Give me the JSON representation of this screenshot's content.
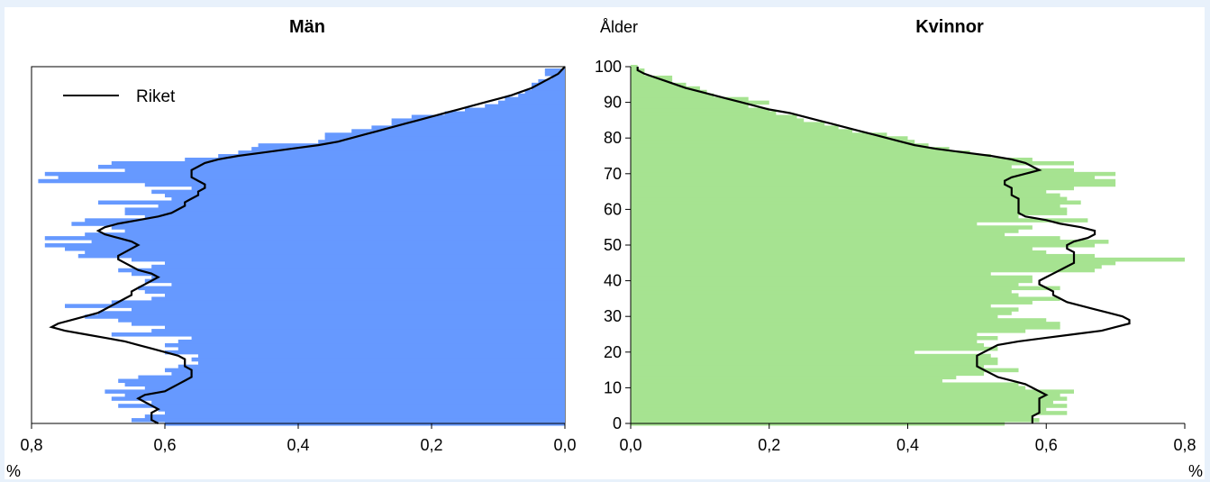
{
  "chart_data": {
    "type": "bar",
    "y_axis": {
      "label": "Ålder",
      "range": [
        0,
        100
      ],
      "ticks": [
        0,
        10,
        20,
        30,
        40,
        50,
        60,
        70,
        80,
        90,
        100
      ]
    },
    "x_unit": "%",
    "panels": [
      {
        "title": "Män",
        "bar_color": "#6699ff",
        "x_range": [
          0.8,
          0.0
        ],
        "x_tick_labels": [
          "0,8",
          "0,6",
          "0,4",
          "0,2",
          "0,0"
        ],
        "x_tick_values": [
          0.8,
          0.6,
          0.4,
          0.2,
          0.0
        ],
        "ages": [
          0,
          1,
          2,
          3,
          4,
          5,
          6,
          7,
          8,
          9,
          10,
          11,
          12,
          13,
          14,
          15,
          16,
          17,
          18,
          19,
          20,
          21,
          22,
          23,
          24,
          25,
          26,
          27,
          28,
          29,
          30,
          31,
          32,
          33,
          34,
          35,
          36,
          37,
          38,
          39,
          40,
          41,
          42,
          43,
          44,
          45,
          46,
          47,
          48,
          49,
          50,
          51,
          52,
          53,
          54,
          55,
          56,
          57,
          58,
          59,
          60,
          61,
          62,
          63,
          64,
          65,
          66,
          67,
          68,
          69,
          70,
          71,
          72,
          73,
          74,
          75,
          76,
          77,
          78,
          79,
          80,
          81,
          82,
          83,
          84,
          85,
          86,
          87,
          88,
          89,
          90,
          91,
          92,
          93,
          94,
          95,
          96,
          97,
          98,
          99,
          100
        ],
        "values": [
          0.6,
          0.65,
          0.63,
          0.6,
          0.61,
          0.67,
          0.62,
          0.68,
          0.66,
          0.69,
          0.63,
          0.66,
          0.67,
          0.64,
          0.59,
          0.6,
          0.58,
          0.55,
          0.56,
          0.55,
          0.6,
          0.58,
          0.6,
          0.58,
          0.56,
          0.68,
          0.62,
          0.6,
          0.65,
          0.67,
          0.72,
          0.7,
          0.65,
          0.75,
          0.68,
          0.62,
          0.6,
          0.63,
          0.64,
          0.59,
          0.63,
          0.62,
          0.65,
          0.67,
          0.62,
          0.6,
          0.65,
          0.73,
          0.72,
          0.75,
          0.78,
          0.71,
          0.78,
          0.72,
          0.66,
          0.68,
          0.74,
          0.72,
          0.63,
          0.66,
          0.66,
          0.61,
          0.7,
          0.59,
          0.6,
          0.62,
          0.56,
          0.63,
          0.79,
          0.76,
          0.78,
          0.66,
          0.7,
          0.68,
          0.57,
          0.52,
          0.49,
          0.47,
          0.46,
          0.37,
          0.36,
          0.36,
          0.32,
          0.29,
          0.26,
          0.26,
          0.23,
          0.18,
          0.15,
          0.12,
          0.1,
          0.09,
          0.07,
          0.06,
          0.05,
          0.05,
          0.04,
          0.02,
          0.03,
          0.03,
          0.0
        ],
        "riket_values": [
          0.61,
          0.62,
          0.62,
          0.62,
          0.61,
          0.62,
          0.63,
          0.64,
          0.63,
          0.6,
          0.59,
          0.58,
          0.57,
          0.56,
          0.56,
          0.56,
          0.57,
          0.57,
          0.57,
          0.58,
          0.6,
          0.62,
          0.64,
          0.66,
          0.69,
          0.72,
          0.75,
          0.77,
          0.76,
          0.74,
          0.72,
          0.7,
          0.69,
          0.68,
          0.67,
          0.66,
          0.65,
          0.65,
          0.64,
          0.63,
          0.62,
          0.61,
          0.62,
          0.64,
          0.65,
          0.66,
          0.67,
          0.67,
          0.66,
          0.65,
          0.64,
          0.65,
          0.67,
          0.69,
          0.7,
          0.69,
          0.67,
          0.64,
          0.61,
          0.59,
          0.58,
          0.57,
          0.57,
          0.56,
          0.55,
          0.55,
          0.54,
          0.54,
          0.55,
          0.56,
          0.56,
          0.56,
          0.55,
          0.54,
          0.52,
          0.49,
          0.45,
          0.41,
          0.37,
          0.34,
          0.32,
          0.3,
          0.28,
          0.26,
          0.24,
          0.22,
          0.2,
          0.18,
          0.16,
          0.14,
          0.12,
          0.1,
          0.08,
          0.065,
          0.05,
          0.04,
          0.03,
          0.02,
          0.01,
          0.005,
          0.0
        ]
      },
      {
        "title": "Kvinnor",
        "bar_color": "#a6e391",
        "x_range": [
          0.0,
          0.8
        ],
        "x_tick_labels": [
          "0,0",
          "0,2",
          "0,4",
          "0,6",
          "0,8"
        ],
        "x_tick_values": [
          0.0,
          0.2,
          0.4,
          0.6,
          0.8
        ],
        "ages": [
          0,
          1,
          2,
          3,
          4,
          5,
          6,
          7,
          8,
          9,
          10,
          11,
          12,
          13,
          14,
          15,
          16,
          17,
          18,
          19,
          20,
          21,
          22,
          23,
          24,
          25,
          26,
          27,
          28,
          29,
          30,
          31,
          32,
          33,
          34,
          35,
          36,
          37,
          38,
          39,
          40,
          41,
          42,
          43,
          44,
          45,
          46,
          47,
          48,
          49,
          50,
          51,
          52,
          53,
          54,
          55,
          56,
          57,
          58,
          59,
          60,
          61,
          62,
          63,
          64,
          65,
          66,
          67,
          68,
          69,
          70,
          71,
          72,
          73,
          74,
          75,
          76,
          77,
          78,
          79,
          80,
          81,
          82,
          83,
          84,
          85,
          86,
          87,
          88,
          89,
          90,
          91,
          92,
          93,
          94,
          95,
          96,
          97,
          98,
          99,
          100
        ],
        "values": [
          0.54,
          0.59,
          0.58,
          0.63,
          0.6,
          0.63,
          0.61,
          0.63,
          0.62,
          0.64,
          0.57,
          0.56,
          0.45,
          0.47,
          0.51,
          0.56,
          0.51,
          0.53,
          0.53,
          0.52,
          0.41,
          0.53,
          0.51,
          0.5,
          0.53,
          0.5,
          0.57,
          0.62,
          0.62,
          0.6,
          0.53,
          0.55,
          0.56,
          0.52,
          0.58,
          0.62,
          0.56,
          0.55,
          0.62,
          0.56,
          0.58,
          0.58,
          0.52,
          0.67,
          0.68,
          0.7,
          0.8,
          0.67,
          0.6,
          0.58,
          0.67,
          0.69,
          0.62,
          0.54,
          0.56,
          0.58,
          0.5,
          0.66,
          0.56,
          0.63,
          0.63,
          0.62,
          0.65,
          0.63,
          0.62,
          0.6,
          0.64,
          0.7,
          0.7,
          0.67,
          0.7,
          0.64,
          0.55,
          0.64,
          0.58,
          0.52,
          0.49,
          0.46,
          0.43,
          0.41,
          0.4,
          0.37,
          0.32,
          0.3,
          0.28,
          0.25,
          0.24,
          0.21,
          0.2,
          0.17,
          0.2,
          0.17,
          0.12,
          0.11,
          0.1,
          0.08,
          0.06,
          0.06,
          0.02,
          0.02,
          0.01
        ],
        "riket_values": [
          0.58,
          0.58,
          0.58,
          0.59,
          0.59,
          0.59,
          0.59,
          0.59,
          0.6,
          0.59,
          0.58,
          0.57,
          0.55,
          0.53,
          0.52,
          0.51,
          0.5,
          0.5,
          0.5,
          0.5,
          0.51,
          0.52,
          0.53,
          0.56,
          0.6,
          0.64,
          0.68,
          0.7,
          0.72,
          0.72,
          0.71,
          0.69,
          0.67,
          0.65,
          0.63,
          0.62,
          0.61,
          0.61,
          0.6,
          0.59,
          0.59,
          0.6,
          0.61,
          0.62,
          0.63,
          0.64,
          0.64,
          0.64,
          0.64,
          0.63,
          0.63,
          0.64,
          0.66,
          0.67,
          0.67,
          0.65,
          0.62,
          0.6,
          0.57,
          0.56,
          0.56,
          0.56,
          0.56,
          0.56,
          0.55,
          0.55,
          0.55,
          0.54,
          0.54,
          0.55,
          0.57,
          0.59,
          0.58,
          0.57,
          0.55,
          0.52,
          0.48,
          0.44,
          0.41,
          0.39,
          0.37,
          0.35,
          0.33,
          0.31,
          0.29,
          0.27,
          0.25,
          0.23,
          0.2,
          0.18,
          0.16,
          0.14,
          0.12,
          0.1,
          0.08,
          0.065,
          0.05,
          0.035,
          0.02,
          0.01,
          0.01
        ]
      }
    ],
    "legend": {
      "entries": [
        "Riket"
      ],
      "position": "top-left of left panel"
    }
  }
}
